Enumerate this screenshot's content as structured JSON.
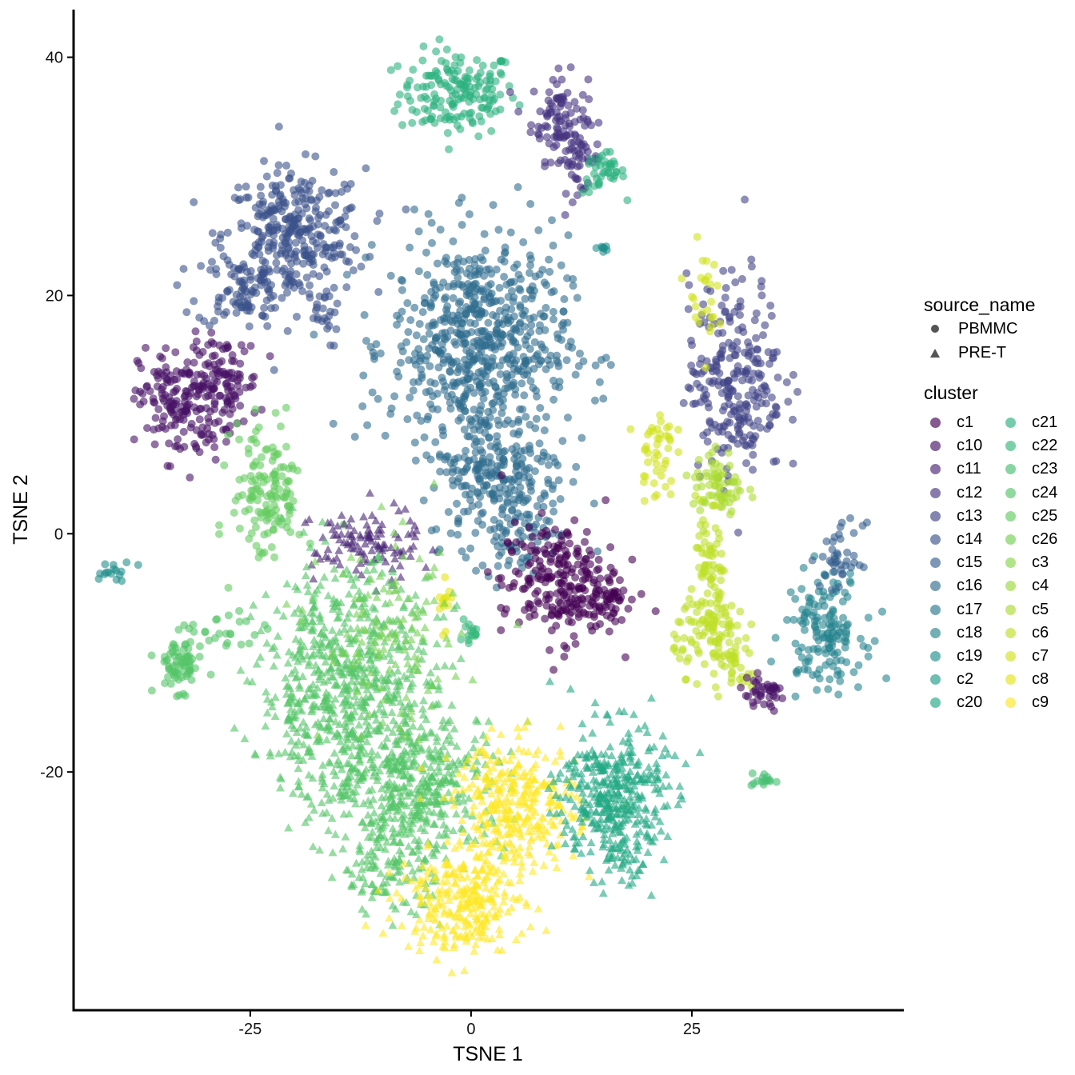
{
  "chart_data": {
    "type": "scatter",
    "xlabel": "TSNE 1",
    "ylabel": "TSNE 2",
    "xlim": [
      -45,
      49
    ],
    "ylim": [
      -40,
      44
    ],
    "x_ticks": [
      -25,
      0,
      25
    ],
    "y_ticks": [
      -20,
      0,
      20,
      40
    ],
    "x_tick_labels": [
      "-25",
      "0",
      "25"
    ],
    "y_tick_labels": [
      "-20",
      "0",
      "20",
      "40"
    ],
    "grid": false,
    "point_alpha": 0.6,
    "legend_position": "right",
    "shape_legend": {
      "title": "source_name",
      "entries": [
        {
          "label": "PBMMC",
          "shape": "circle"
        },
        {
          "label": "PRE-T",
          "shape": "triangle"
        }
      ]
    },
    "cluster_legend": {
      "title": "cluster",
      "entries": [
        {
          "label": "c1",
          "color": "#440154"
        },
        {
          "label": "c10",
          "color": "#471365"
        },
        {
          "label": "c11",
          "color": "#482475"
        },
        {
          "label": "c12",
          "color": "#463480"
        },
        {
          "label": "c13",
          "color": "#414487"
        },
        {
          "label": "c14",
          "color": "#3B528B"
        },
        {
          "label": "c15",
          "color": "#355F8D"
        },
        {
          "label": "c16",
          "color": "#2F6C8E"
        },
        {
          "label": "c17",
          "color": "#2A788E"
        },
        {
          "label": "c18",
          "color": "#25848E"
        },
        {
          "label": "c19",
          "color": "#21908C"
        },
        {
          "label": "c2",
          "color": "#1F9C89"
        },
        {
          "label": "c20",
          "color": "#22A884"
        },
        {
          "label": "c21",
          "color": "#2BB07F"
        },
        {
          "label": "c22",
          "color": "#35B779"
        },
        {
          "label": "c23",
          "color": "#45BE71"
        },
        {
          "label": "c24",
          "color": "#54C568"
        },
        {
          "label": "c25",
          "color": "#64CB5F"
        },
        {
          "label": "c26",
          "color": "#75D054"
        },
        {
          "label": "c3",
          "color": "#87D549"
        },
        {
          "label": "c4",
          "color": "#99D83D"
        },
        {
          "label": "c5",
          "color": "#ABDC32"
        },
        {
          "label": "c6",
          "color": "#BEDF26"
        },
        {
          "label": "c7",
          "color": "#D1E21B"
        },
        {
          "label": "c8",
          "color": "#E3E418"
        },
        {
          "label": "c9",
          "color": "#FDE725"
        }
      ]
    },
    "point_groups": [
      {
        "cluster": "c21",
        "shape": "circle",
        "cx": -1.5,
        "cy": 37,
        "sx": 3.3,
        "sy": 1.8,
        "n": 170
      },
      {
        "cluster": "c12",
        "shape": "circle",
        "cx": 10,
        "cy": 35,
        "sx": 1.6,
        "sy": 1.8,
        "n": 90
      },
      {
        "cluster": "c12",
        "shape": "circle",
        "cx": 12,
        "cy": 31.5,
        "sx": 1.3,
        "sy": 1.4,
        "n": 50
      },
      {
        "cluster": "c21",
        "shape": "circle",
        "cx": 15,
        "cy": 30.3,
        "sx": 1.2,
        "sy": 0.9,
        "n": 40
      },
      {
        "cluster": "c19",
        "shape": "circle",
        "cx": 15,
        "cy": 24,
        "sx": 0.4,
        "sy": 0.3,
        "n": 8
      },
      {
        "cluster": "c14",
        "shape": "circle",
        "cx": -20,
        "cy": 25,
        "sx": 4,
        "sy": 2.8,
        "n": 320
      },
      {
        "cluster": "c14",
        "shape": "circle",
        "cx": -26,
        "cy": 20.5,
        "sx": 2.5,
        "sy": 1.6,
        "n": 90
      },
      {
        "cluster": "c14",
        "shape": "circle",
        "cx": -17,
        "cy": 18,
        "sx": 1,
        "sy": 1.2,
        "n": 20
      },
      {
        "cluster": "c10",
        "shape": "circle",
        "cx": -33,
        "cy": 11,
        "sx": 2.3,
        "sy": 2.4,
        "n": 160
      },
      {
        "cluster": "c10",
        "shape": "circle",
        "cx": -28,
        "cy": 12.5,
        "sx": 2,
        "sy": 2,
        "n": 110
      },
      {
        "cluster": "c16",
        "shape": "circle",
        "cx": 1,
        "cy": 16,
        "sx": 5,
        "sy": 4.5,
        "n": 650
      },
      {
        "cluster": "c16",
        "shape": "circle",
        "cx": 3,
        "cy": 5,
        "sx": 4,
        "sy": 3,
        "n": 230
      },
      {
        "cluster": "c16",
        "shape": "circle",
        "cx": 5,
        "cy": 0,
        "sx": 2,
        "sy": 1.5,
        "n": 60
      },
      {
        "cluster": "c1",
        "shape": "circle",
        "cx": 10,
        "cy": -4,
        "sx": 3.3,
        "sy": 2.5,
        "n": 240
      },
      {
        "cluster": "c1",
        "shape": "circle",
        "cx": 15,
        "cy": -6,
        "sx": 1.6,
        "sy": 1,
        "n": 40
      },
      {
        "cluster": "c13",
        "shape": "circle",
        "cx": 30,
        "cy": 13,
        "sx": 2.7,
        "sy": 4.2,
        "n": 260
      },
      {
        "cluster": "c7",
        "shape": "circle",
        "cx": 26,
        "cy": 20,
        "sx": 0.9,
        "sy": 2,
        "n": 25
      },
      {
        "cluster": "c7",
        "shape": "circle",
        "cx": 21,
        "cy": 7,
        "sx": 1,
        "sy": 2,
        "n": 45
      },
      {
        "cluster": "c5",
        "shape": "circle",
        "cx": 28,
        "cy": 4,
        "sx": 1.5,
        "sy": 1.6,
        "n": 70
      },
      {
        "cluster": "c6",
        "shape": "circle",
        "cx": 27,
        "cy": -3,
        "sx": 0.8,
        "sy": 2.8,
        "n": 60
      },
      {
        "cluster": "c6",
        "shape": "circle",
        "cx": 27,
        "cy": -8,
        "sx": 2,
        "sy": 1.8,
        "n": 90
      },
      {
        "cluster": "c6",
        "shape": "circle",
        "cx": 30,
        "cy": -11,
        "sx": 1.2,
        "sy": 1.5,
        "n": 40
      },
      {
        "cluster": "c10",
        "shape": "circle",
        "cx": 33,
        "cy": -13.5,
        "sx": 1.4,
        "sy": 0.7,
        "n": 40
      },
      {
        "cluster": "c18",
        "shape": "circle",
        "cx": 40,
        "cy": -8,
        "sx": 2.2,
        "sy": 2.4,
        "n": 150
      },
      {
        "cluster": "c15",
        "shape": "circle",
        "cx": 42,
        "cy": -2,
        "sx": 1.2,
        "sy": 1.4,
        "n": 40
      },
      {
        "cluster": "c23",
        "shape": "circle",
        "cx": 33,
        "cy": -20.7,
        "sx": 0.7,
        "sy": 0.3,
        "n": 14
      },
      {
        "cluster": "c19",
        "shape": "circle",
        "cx": -40.5,
        "cy": -3.3,
        "sx": 1.2,
        "sy": 0.5,
        "n": 16
      },
      {
        "cluster": "c24",
        "shape": "circle",
        "cx": -33,
        "cy": -11,
        "sx": 1.3,
        "sy": 1.1,
        "n": 70
      },
      {
        "cluster": "c24",
        "shape": "circle",
        "cx": -28,
        "cy": -8.5,
        "sx": 2.2,
        "sy": 1,
        "n": 25
      },
      {
        "cluster": "c25",
        "shape": "circle",
        "cx": -23,
        "cy": 3.5,
        "sx": 2,
        "sy": 3,
        "n": 140
      },
      {
        "cluster": "c22",
        "shape": "circle",
        "cx": -0.2,
        "cy": -8.4,
        "sx": 0.6,
        "sy": 0.6,
        "n": 15
      },
      {
        "cluster": "c8",
        "shape": "circle",
        "cx": -3,
        "cy": -6,
        "sx": 0.4,
        "sy": 0.9,
        "n": 14
      },
      {
        "cluster": "c11",
        "shape": "triangle",
        "cx": -12,
        "cy": -1,
        "sx": 3,
        "sy": 1.6,
        "n": 110
      },
      {
        "cluster": "c24",
        "shape": "triangle",
        "cx": -14,
        "cy": -13,
        "sx": 5,
        "sy": 5,
        "n": 700
      },
      {
        "cluster": "c24",
        "shape": "triangle",
        "cx": -6,
        "cy": -21,
        "sx": 5,
        "sy": 3,
        "n": 400
      },
      {
        "cluster": "c24",
        "shape": "triangle",
        "cx": -9,
        "cy": -28,
        "sx": 3,
        "sy": 2,
        "n": 120
      },
      {
        "cluster": "c26",
        "shape": "triangle",
        "cx": -9,
        "cy": -9,
        "sx": 4,
        "sy": 4,
        "n": 120
      },
      {
        "cluster": "c9",
        "shape": "triangle",
        "cx": 5,
        "cy": -23,
        "sx": 3.5,
        "sy": 2.8,
        "n": 330
      },
      {
        "cluster": "c9",
        "shape": "triangle",
        "cx": -1,
        "cy": -31,
        "sx": 3.5,
        "sy": 2,
        "n": 260
      },
      {
        "cluster": "c20",
        "shape": "triangle",
        "cx": 16,
        "cy": -22,
        "sx": 3,
        "sy": 3,
        "n": 380
      },
      {
        "cluster": "c20",
        "shape": "triangle",
        "cx": 17,
        "cy": -27.5,
        "sx": 1.5,
        "sy": 0.8,
        "n": 30
      }
    ]
  }
}
